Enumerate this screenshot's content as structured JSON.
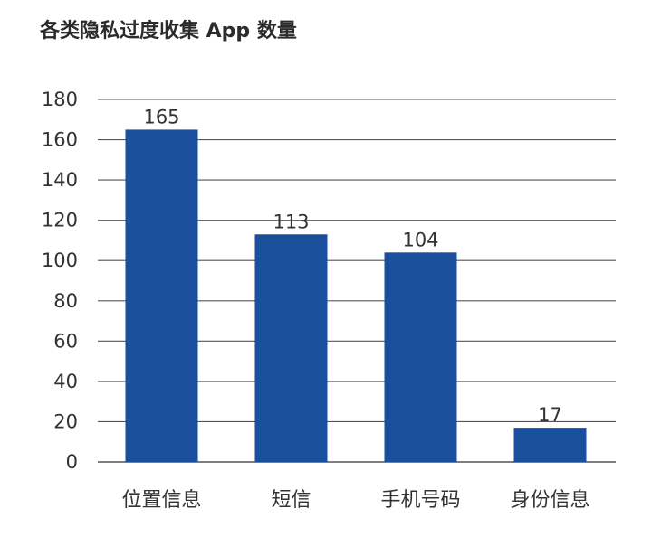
{
  "chart_data": {
    "type": "bar",
    "title": "各类隐私过度收集 App 数量",
    "categories": [
      "位置信息",
      "短信",
      "手机号码",
      "身份信息"
    ],
    "values": [
      165,
      113,
      104,
      17
    ],
    "ylim": [
      0,
      180
    ],
    "yticks": [
      0,
      20,
      40,
      60,
      80,
      100,
      120,
      140,
      160,
      180
    ],
    "grid": true,
    "bar_color": "#1a4f9c",
    "grid_color": "#555555"
  }
}
